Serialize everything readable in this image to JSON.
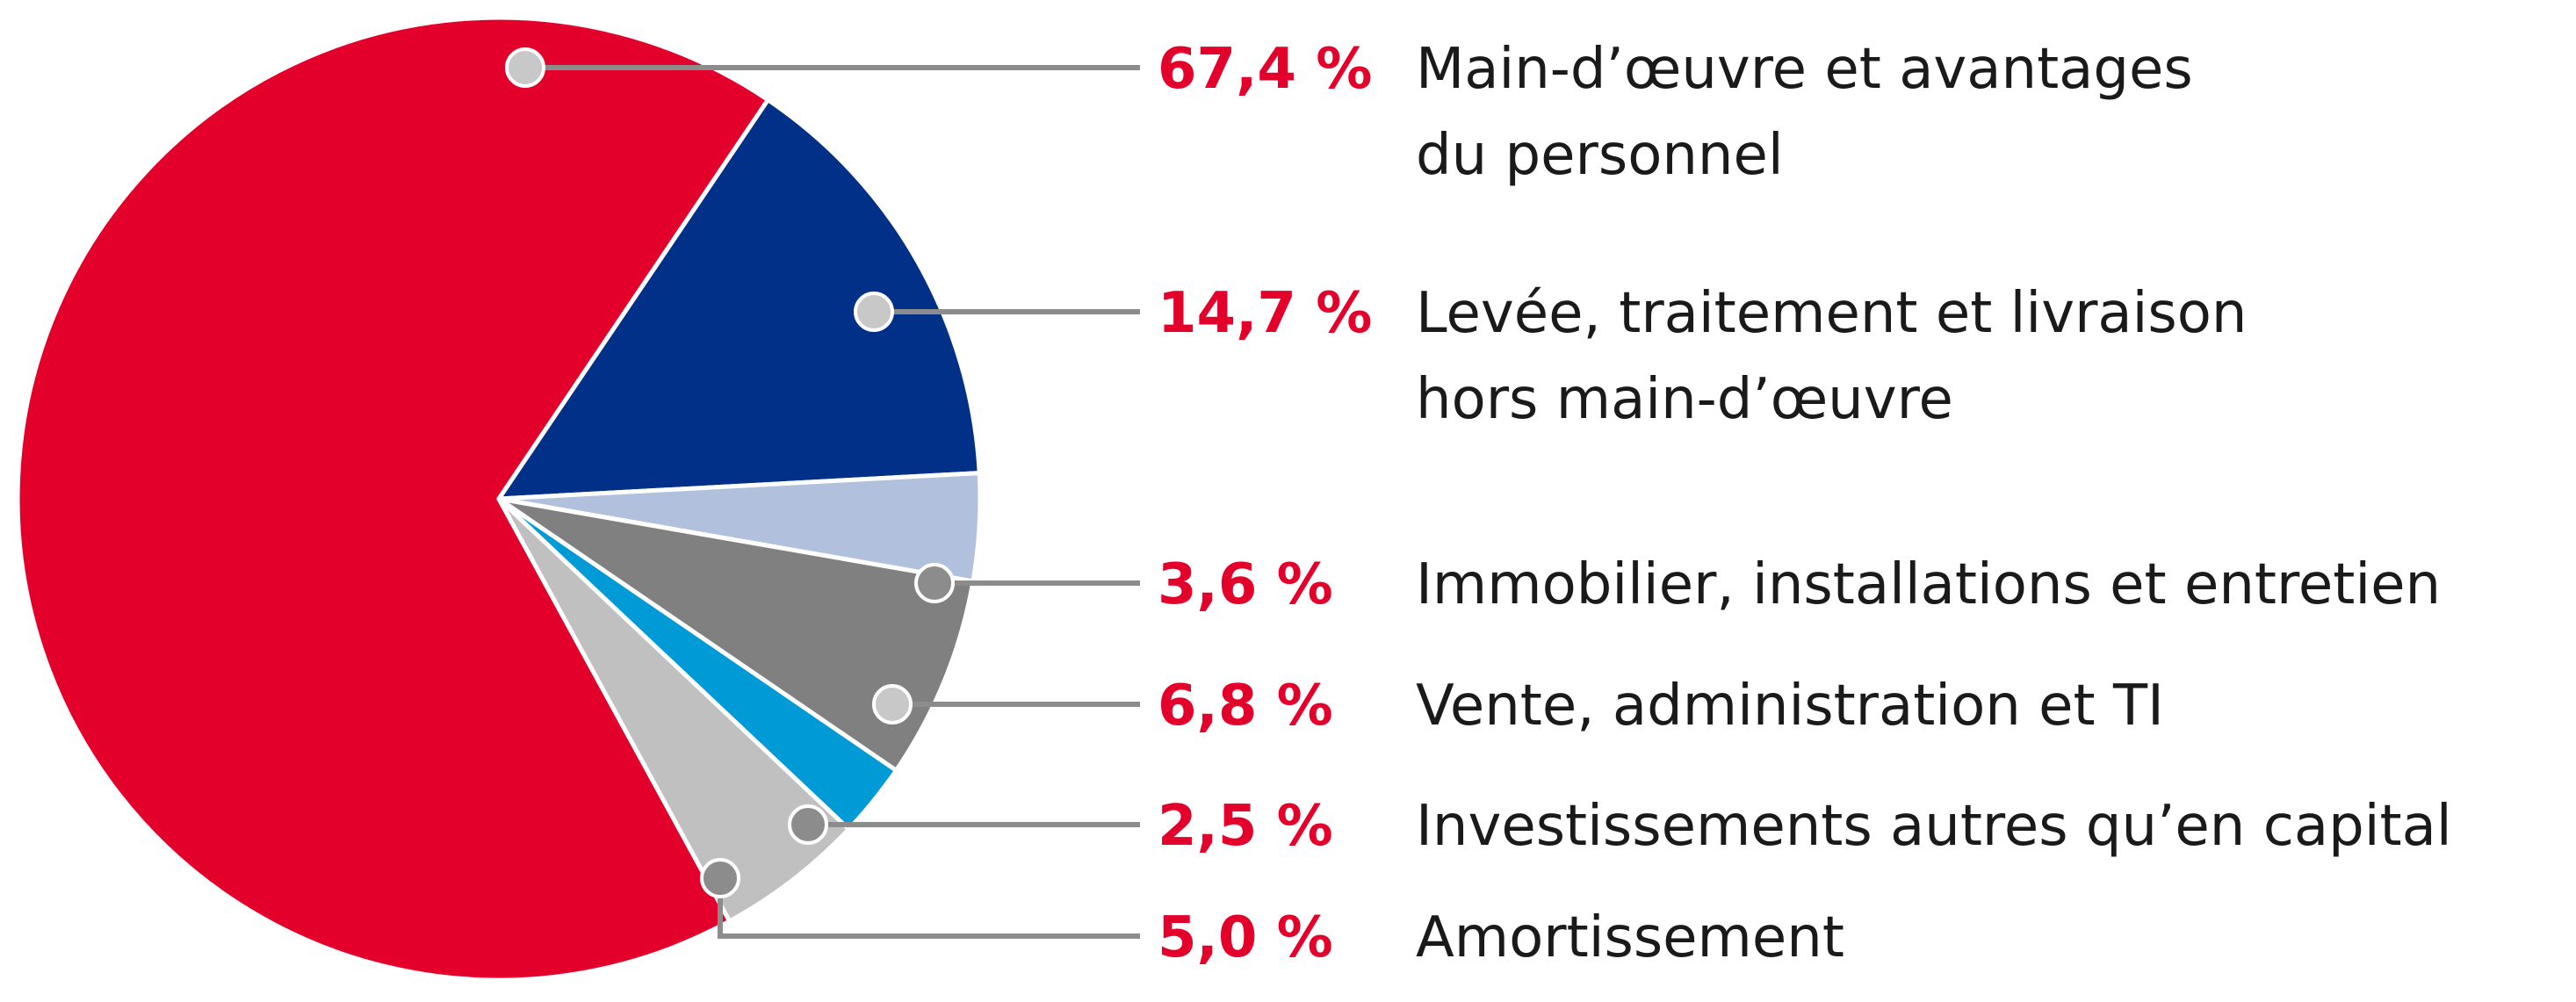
{
  "chart_data": {
    "type": "pie",
    "slices": [
      {
        "value": 67.4,
        "label_pct": "67,4 %",
        "label_lines": [
          "Main-d’œuvre et avantages",
          "du personnel"
        ],
        "color": "#e3002b"
      },
      {
        "value": 14.7,
        "label_pct": "14,7 %",
        "label_lines": [
          "Levée, traitement et livraison",
          "hors main-d’œuvre"
        ],
        "color": "#003087"
      },
      {
        "value": 3.6,
        "label_pct": "3,6 %",
        "label_lines": [
          "Immobilier, installations et entretien"
        ],
        "color": "#b1c0dc"
      },
      {
        "value": 6.8,
        "label_pct": "6,8 %",
        "label_lines": [
          "Vente, administration et TI"
        ],
        "color": "#808080"
      },
      {
        "value": 2.5,
        "label_pct": "2,5 %",
        "label_lines": [
          "Investissements autres qu’en capital"
        ],
        "color": "#009ad6"
      },
      {
        "value": 5.0,
        "label_pct": "5,0 %",
        "label_lines": [
          "Amortissement"
        ],
        "color": "#c0c0c0"
      }
    ]
  },
  "colors": {
    "percent_text": "#e3002b",
    "leader_line": "#8c8c8c",
    "slice_border": "#ffffff"
  }
}
